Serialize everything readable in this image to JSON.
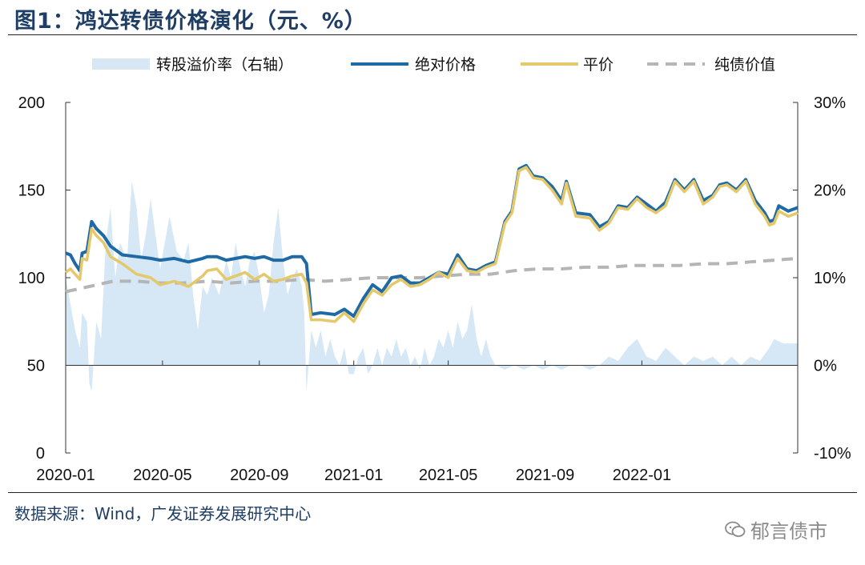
{
  "title": "图1：鸿达转债价格演化（元、%）",
  "source": "数据来源：Wind，广发证券发展研究中心",
  "watermark": "郁言债市",
  "chart_data": {
    "type": "line",
    "x_ticks": [
      "2020-01",
      "2020-05",
      "2020-09",
      "2021-01",
      "2021-05",
      "2021-09",
      "2022-01"
    ],
    "y_left": {
      "ticks": [
        "0",
        "50",
        "100",
        "150",
        "200"
      ],
      "range": [
        0,
        200
      ]
    },
    "y_right": {
      "ticks": [
        "-10%",
        "0%",
        "10%",
        "20%",
        "30%"
      ],
      "range": [
        -10,
        30
      ]
    },
    "legend": [
      {
        "key": "premium",
        "label": "转股溢价率（右轴）",
        "color": "#d6e7f5",
        "style": "area"
      },
      {
        "key": "price",
        "label": "绝对价格",
        "color": "#1f6aa5",
        "style": "line"
      },
      {
        "key": "parity",
        "label": "平价",
        "color": "#e5c86a",
        "style": "line"
      },
      {
        "key": "bond",
        "label": "纯债价值",
        "color": "#b5b5b5",
        "style": "dashed"
      }
    ],
    "series": {
      "price": [
        [
          2020.0,
          114
        ],
        [
          2020.1,
          113
        ],
        [
          2020.2,
          108
        ],
        [
          2020.3,
          104
        ],
        [
          2020.35,
          114
        ],
        [
          2020.45,
          115
        ],
        [
          2020.55,
          132
        ],
        [
          2020.65,
          128
        ],
        [
          2020.8,
          124
        ],
        [
          2020.95,
          118
        ],
        [
          2021.2,
          113
        ],
        [
          2021.5,
          112
        ],
        [
          2021.8,
          111
        ],
        [
          2022.0,
          110
        ],
        [
          2022.3,
          111
        ],
        [
          2022.6,
          109
        ],
        [
          2022.9,
          111
        ],
        [
          2023.0,
          112
        ],
        [
          2023.2,
          112
        ],
        [
          2023.4,
          110
        ],
        [
          2023.6,
          111
        ],
        [
          2023.8,
          112
        ],
        [
          2024.0,
          111
        ],
        [
          2024.2,
          112
        ],
        [
          2024.4,
          110
        ],
        [
          2024.6,
          110
        ],
        [
          2024.8,
          112
        ],
        [
          2025.0,
          112
        ],
        [
          2025.1,
          108
        ],
        [
          2025.2,
          79
        ],
        [
          2025.4,
          80
        ],
        [
          2025.7,
          79
        ],
        [
          2025.9,
          82
        ],
        [
          2026.1,
          78
        ],
        [
          2026.3,
          88
        ],
        [
          2026.5,
          96
        ],
        [
          2026.7,
          92
        ],
        [
          2026.9,
          100
        ],
        [
          2027.1,
          101
        ],
        [
          2027.3,
          97
        ],
        [
          2027.5,
          97
        ],
        [
          2027.7,
          100
        ],
        [
          2027.9,
          103
        ],
        [
          2028.1,
          102
        ],
        [
          2028.3,
          113
        ],
        [
          2028.5,
          105
        ],
        [
          2028.7,
          104
        ],
        [
          2028.9,
          107
        ],
        [
          2029.1,
          109
        ],
        [
          2029.3,
          132
        ],
        [
          2029.45,
          138
        ],
        [
          2029.6,
          162
        ],
        [
          2029.75,
          164
        ],
        [
          2029.9,
          158
        ],
        [
          2030.1,
          157
        ],
        [
          2030.3,
          152
        ],
        [
          2030.5,
          144
        ],
        [
          2030.6,
          155
        ],
        [
          2030.8,
          137
        ],
        [
          2031.1,
          136
        ],
        [
          2031.3,
          129
        ],
        [
          2031.5,
          132
        ],
        [
          2031.7,
          141
        ],
        [
          2031.9,
          140
        ],
        [
          2032.1,
          146
        ],
        [
          2032.3,
          142
        ],
        [
          2032.5,
          138
        ],
        [
          2032.7,
          143
        ],
        [
          2032.9,
          156
        ],
        [
          2033.1,
          150
        ],
        [
          2033.3,
          156
        ],
        [
          2033.5,
          144
        ],
        [
          2033.7,
          147
        ],
        [
          2033.85,
          153
        ],
        [
          2034.0,
          154
        ],
        [
          2034.2,
          150
        ],
        [
          2034.4,
          156
        ],
        [
          2034.6,
          144
        ],
        [
          2034.8,
          137
        ],
        [
          2034.9,
          132
        ],
        [
          2035.0,
          133
        ],
        [
          2035.1,
          141
        ],
        [
          2035.3,
          138
        ],
        [
          2035.5,
          140
        ]
      ],
      "parity": [
        [
          2020.0,
          103
        ],
        [
          2020.1,
          105
        ],
        [
          2020.2,
          102
        ],
        [
          2020.3,
          99
        ],
        [
          2020.35,
          111
        ],
        [
          2020.45,
          110
        ],
        [
          2020.55,
          128
        ],
        [
          2020.65,
          124
        ],
        [
          2020.8,
          120
        ],
        [
          2020.95,
          112
        ],
        [
          2021.2,
          108
        ],
        [
          2021.5,
          102
        ],
        [
          2021.8,
          100
        ],
        [
          2022.0,
          96
        ],
        [
          2022.3,
          98
        ],
        [
          2022.6,
          95
        ],
        [
          2022.9,
          101
        ],
        [
          2023.0,
          104
        ],
        [
          2023.2,
          105
        ],
        [
          2023.4,
          99
        ],
        [
          2023.6,
          101
        ],
        [
          2023.8,
          103
        ],
        [
          2024.0,
          99
        ],
        [
          2024.2,
          102
        ],
        [
          2024.4,
          98
        ],
        [
          2024.6,
          99
        ],
        [
          2024.8,
          101
        ],
        [
          2025.0,
          102
        ],
        [
          2025.1,
          97
        ],
        [
          2025.2,
          76
        ],
        [
          2025.4,
          76
        ],
        [
          2025.7,
          75
        ],
        [
          2025.9,
          80
        ],
        [
          2026.1,
          75
        ],
        [
          2026.3,
          85
        ],
        [
          2026.5,
          93
        ],
        [
          2026.7,
          90
        ],
        [
          2026.9,
          96
        ],
        [
          2027.1,
          99
        ],
        [
          2027.3,
          95
        ],
        [
          2027.5,
          96
        ],
        [
          2027.7,
          99
        ],
        [
          2027.9,
          103
        ],
        [
          2028.1,
          100
        ],
        [
          2028.3,
          111
        ],
        [
          2028.5,
          104
        ],
        [
          2028.7,
          103
        ],
        [
          2028.9,
          106
        ],
        [
          2029.1,
          108
        ],
        [
          2029.3,
          131
        ],
        [
          2029.45,
          137
        ],
        [
          2029.6,
          161
        ],
        [
          2029.75,
          163
        ],
        [
          2029.9,
          157
        ],
        [
          2030.1,
          156
        ],
        [
          2030.3,
          150
        ],
        [
          2030.5,
          142
        ],
        [
          2030.6,
          154
        ],
        [
          2030.8,
          135
        ],
        [
          2031.1,
          134
        ],
        [
          2031.3,
          127
        ],
        [
          2031.5,
          131
        ],
        [
          2031.7,
          140
        ],
        [
          2031.9,
          139
        ],
        [
          2032.1,
          145
        ],
        [
          2032.3,
          140
        ],
        [
          2032.5,
          137
        ],
        [
          2032.7,
          141
        ],
        [
          2032.9,
          155
        ],
        [
          2033.1,
          149
        ],
        [
          2033.3,
          155
        ],
        [
          2033.5,
          142
        ],
        [
          2033.7,
          146
        ],
        [
          2033.85,
          152
        ],
        [
          2034.0,
          153
        ],
        [
          2034.2,
          149
        ],
        [
          2034.4,
          155
        ],
        [
          2034.6,
          142
        ],
        [
          2034.8,
          135
        ],
        [
          2034.9,
          130
        ],
        [
          2035.0,
          131
        ],
        [
          2035.1,
          138
        ],
        [
          2035.3,
          135
        ],
        [
          2035.5,
          137
        ]
      ],
      "bond": [
        [
          2020.0,
          92
        ],
        [
          2020.5,
          95
        ],
        [
          2021.0,
          98
        ],
        [
          2021.5,
          98
        ],
        [
          2022.0,
          97
        ],
        [
          2022.5,
          97
        ],
        [
          2023.0,
          98
        ],
        [
          2023.5,
          97
        ],
        [
          2024.0,
          98
        ],
        [
          2024.5,
          98
        ],
        [
          2025.0,
          99
        ],
        [
          2025.5,
          98
        ],
        [
          2026.0,
          99
        ],
        [
          2026.5,
          100
        ],
        [
          2027.0,
          100
        ],
        [
          2027.5,
          100
        ],
        [
          2028.0,
          101
        ],
        [
          2028.5,
          102
        ],
        [
          2029.0,
          102
        ],
        [
          2029.5,
          104
        ],
        [
          2030.0,
          105
        ],
        [
          2030.5,
          105
        ],
        [
          2031.0,
          106
        ],
        [
          2031.5,
          106
        ],
        [
          2032.0,
          107
        ],
        [
          2032.5,
          107
        ],
        [
          2033.0,
          107
        ],
        [
          2033.5,
          108
        ],
        [
          2034.0,
          108
        ],
        [
          2034.5,
          109
        ],
        [
          2035.0,
          110
        ],
        [
          2035.5,
          111
        ]
      ],
      "premium": [
        [
          2020.0,
          10
        ],
        [
          2020.1,
          7
        ],
        [
          2020.2,
          4
        ],
        [
          2020.3,
          2
        ],
        [
          2020.35,
          6
        ],
        [
          2020.45,
          5
        ],
        [
          2020.5,
          -2
        ],
        [
          2020.55,
          -3
        ],
        [
          2020.65,
          5
        ],
        [
          2020.75,
          3
        ],
        [
          2020.85,
          14
        ],
        [
          2020.95,
          18
        ],
        [
          2021.05,
          10
        ],
        [
          2021.15,
          14
        ],
        [
          2021.3,
          12
        ],
        [
          2021.4,
          21
        ],
        [
          2021.5,
          18
        ],
        [
          2021.6,
          12
        ],
        [
          2021.7,
          15
        ],
        [
          2021.8,
          19
        ],
        [
          2021.9,
          15
        ],
        [
          2022.0,
          11
        ],
        [
          2022.1,
          14
        ],
        [
          2022.2,
          17
        ],
        [
          2022.35,
          13
        ],
        [
          2022.5,
          12
        ],
        [
          2022.6,
          14
        ],
        [
          2022.7,
          8
        ],
        [
          2022.8,
          4
        ],
        [
          2022.9,
          9
        ],
        [
          2023.0,
          8
        ],
        [
          2023.1,
          10
        ],
        [
          2023.25,
          8
        ],
        [
          2023.4,
          12
        ],
        [
          2023.5,
          10
        ],
        [
          2023.6,
          14
        ],
        [
          2023.7,
          11
        ],
        [
          2023.8,
          9
        ],
        [
          2023.9,
          12
        ],
        [
          2024.0,
          13
        ],
        [
          2024.1,
          10
        ],
        [
          2024.2,
          6
        ],
        [
          2024.3,
          8
        ],
        [
          2024.4,
          14
        ],
        [
          2024.5,
          18
        ],
        [
          2024.6,
          12
        ],
        [
          2024.7,
          8
        ],
        [
          2024.8,
          10
        ],
        [
          2024.9,
          11
        ],
        [
          2025.0,
          9
        ],
        [
          2025.05,
          6
        ],
        [
          2025.1,
          -3
        ],
        [
          2025.2,
          4
        ],
        [
          2025.3,
          2
        ],
        [
          2025.4,
          4
        ],
        [
          2025.5,
          1
        ],
        [
          2025.6,
          3
        ],
        [
          2025.7,
          1
        ],
        [
          2025.8,
          0
        ],
        [
          2025.9,
          2
        ],
        [
          2026.0,
          -1
        ],
        [
          2026.1,
          -1
        ],
        [
          2026.2,
          1
        ],
        [
          2026.3,
          2
        ],
        [
          2026.4,
          -1
        ],
        [
          2026.5,
          0
        ],
        [
          2026.6,
          2
        ],
        [
          2026.7,
          0
        ],
        [
          2026.8,
          2
        ],
        [
          2026.9,
          1
        ],
        [
          2027.0,
          3
        ],
        [
          2027.1,
          1
        ],
        [
          2027.2,
          2
        ],
        [
          2027.3,
          0
        ],
        [
          2027.4,
          1
        ],
        [
          2027.5,
          -0.5
        ],
        [
          2027.6,
          2
        ],
        [
          2027.7,
          0
        ],
        [
          2027.8,
          1
        ],
        [
          2027.9,
          3
        ],
        [
          2028.0,
          2
        ],
        [
          2028.1,
          4
        ],
        [
          2028.2,
          2
        ],
        [
          2028.3,
          5
        ],
        [
          2028.4,
          3
        ],
        [
          2028.5,
          4
        ],
        [
          2028.6,
          7
        ],
        [
          2028.7,
          3
        ],
        [
          2028.8,
          1
        ],
        [
          2028.9,
          3
        ],
        [
          2029.0,
          1
        ],
        [
          2029.1,
          0
        ],
        [
          2029.3,
          -0.5
        ],
        [
          2029.5,
          0
        ],
        [
          2029.7,
          -0.5
        ],
        [
          2029.9,
          0
        ],
        [
          2030.1,
          -0.5
        ],
        [
          2030.3,
          0
        ],
        [
          2030.5,
          -0.5
        ],
        [
          2030.7,
          0
        ],
        [
          2030.9,
          0
        ],
        [
          2031.1,
          -0.5
        ],
        [
          2031.3,
          0
        ],
        [
          2031.5,
          1
        ],
        [
          2031.7,
          0.5
        ],
        [
          2031.9,
          2
        ],
        [
          2032.1,
          3
        ],
        [
          2032.3,
          1
        ],
        [
          2032.5,
          0.5
        ],
        [
          2032.7,
          2
        ],
        [
          2032.9,
          1
        ],
        [
          2033.1,
          0
        ],
        [
          2033.3,
          1
        ],
        [
          2033.5,
          0.5
        ],
        [
          2033.7,
          1
        ],
        [
          2033.9,
          0
        ],
        [
          2034.1,
          1
        ],
        [
          2034.3,
          0
        ],
        [
          2034.5,
          1
        ],
        [
          2034.7,
          0.5
        ],
        [
          2034.9,
          2
        ],
        [
          2035.0,
          3
        ],
        [
          2035.2,
          2.5
        ],
        [
          2035.5,
          2.5
        ]
      ]
    }
  }
}
